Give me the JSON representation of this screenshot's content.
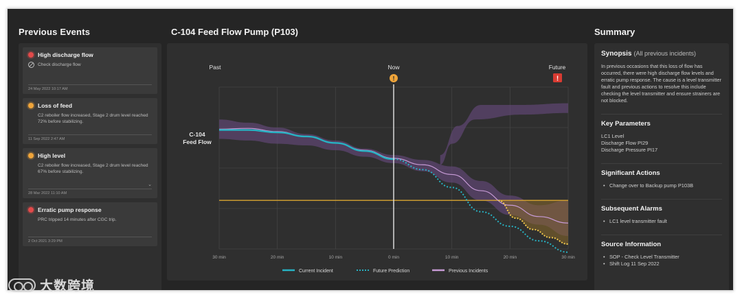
{
  "left": {
    "title": "Previous Events",
    "events": [
      {
        "title": "High discharge flow",
        "status": "red",
        "desc": "Check discharge flow",
        "date": "24 May 2022   10:17 AM"
      },
      {
        "title": "Loss of feed",
        "status": "orange",
        "desc": "C2 reboiler flow increased, Stage 2 drum level reached 72% before stabilizing.",
        "date": "11 Sep 2022   2:47 AM"
      },
      {
        "title": "High level",
        "status": "orange",
        "desc": "C2 reboiler flow increased, Stage 2 drum level reached 67% before stabilizing.",
        "date": "28 Mar 2022   11:10 AM"
      },
      {
        "title": "Erratic pump response",
        "status": "red",
        "desc": "PRC tripped 14 minutes after CGC trip.",
        "date": "2 Oct 2021   3:29 PM"
      }
    ]
  },
  "center": {
    "title": "C-104 Feed Flow Pump (P103)"
  },
  "chart_data": {
    "type": "line",
    "marker_labels": {
      "past": "Past",
      "now": "Now",
      "future": "Future"
    },
    "ylabel": [
      "C-104",
      "Feed Flow"
    ],
    "x_ticks": [
      "30 min",
      "20 min",
      "10 min",
      "0 min",
      "10 min",
      "20 min",
      "30 min"
    ],
    "x": [
      -30,
      -25,
      -20,
      -15,
      -10,
      -5,
      0,
      5,
      10,
      15,
      20,
      25,
      30
    ],
    "threshold": 0.3,
    "series": [
      {
        "name": "Current Incident",
        "color": "#27b3c4",
        "x": [
          -30,
          -25,
          -20,
          -15,
          -10,
          -5,
          0
        ],
        "values": [
          0.735,
          0.735,
          0.72,
          0.695,
          0.655,
          0.605,
          0.555
        ]
      },
      {
        "name": "Future Prediction",
        "color": "#27b3c4",
        "x": [
          0,
          5,
          10,
          15,
          20,
          25,
          30
        ],
        "values": [
          0.555,
          0.49,
          0.38,
          0.23,
          0.14,
          0.05,
          -0.02
        ]
      },
      {
        "name": "Previous Incidents",
        "color": "#c79bd6",
        "x": [
          -30,
          -25,
          -20,
          -15,
          -10,
          -5,
          0,
          5,
          10,
          15,
          20,
          25,
          30
        ],
        "values": [
          0.74,
          0.745,
          0.725,
          0.695,
          0.655,
          0.61,
          0.56,
          0.52,
          0.46,
          0.36,
          0.27,
          0.2,
          0.16
        ]
      }
    ],
    "band_upper": [
      0.8,
      0.78,
      0.75,
      0.71,
      0.67,
      0.62,
      0.58,
      0.55,
      0.51,
      0.42,
      0.33,
      0.27,
      0.3
    ],
    "band_lower": [
      0.68,
      0.67,
      0.65,
      0.64,
      0.61,
      0.57,
      0.53,
      0.48,
      0.41,
      0.3,
      0.21,
      0.15,
      0.08
    ],
    "branch_upper": [
      [
        8,
        0.58
      ],
      [
        11,
        0.76
      ],
      [
        15,
        0.89
      ],
      [
        22,
        0.89
      ],
      [
        30,
        0.9
      ]
    ],
    "branch_lower": [
      [
        8,
        0.52
      ],
      [
        10,
        0.65
      ],
      [
        14,
        0.8
      ],
      [
        22,
        0.83
      ],
      [
        30,
        0.84
      ]
    ],
    "legend": [
      "Current Incident",
      "Future Prediction",
      "Previous Incidents"
    ],
    "colors": {
      "current": "#27b3c4",
      "previous": "#c79bd6",
      "band": "#5e4670",
      "threshold": "#d8a431",
      "now_marker": "#f0a53a",
      "future_marker": "#d93b32"
    }
  },
  "right": {
    "title": "Summary",
    "synopsis_label": "Synopsis",
    "synopsis_scope": "(All previous incidents)",
    "synopsis_text": "In previous occasions that this loss of flow has occurred, there were high discharge flow levels and erratic pump response. The cause is a level transmitter fault and previous actions to resolve this include checking the level transmitter and ensure strainers are not blocked.",
    "key_params_label": "Key Parameters",
    "key_params": [
      "LC1 Level",
      "Discharge Flow PI29",
      "Discharge Pressure PI17"
    ],
    "actions_label": "Significant Actions",
    "actions": [
      "Change over to Backup pump P103B"
    ],
    "alarms_label": "Subsequent Alarms",
    "alarms": [
      "LC1 level transmitter fault"
    ],
    "source_label": "Source Information",
    "sources": [
      "SOP - Check Level Transmitter",
      "Shift Log 11 Sep 2022"
    ]
  },
  "watermark": {
    "text": "大数跨境"
  }
}
